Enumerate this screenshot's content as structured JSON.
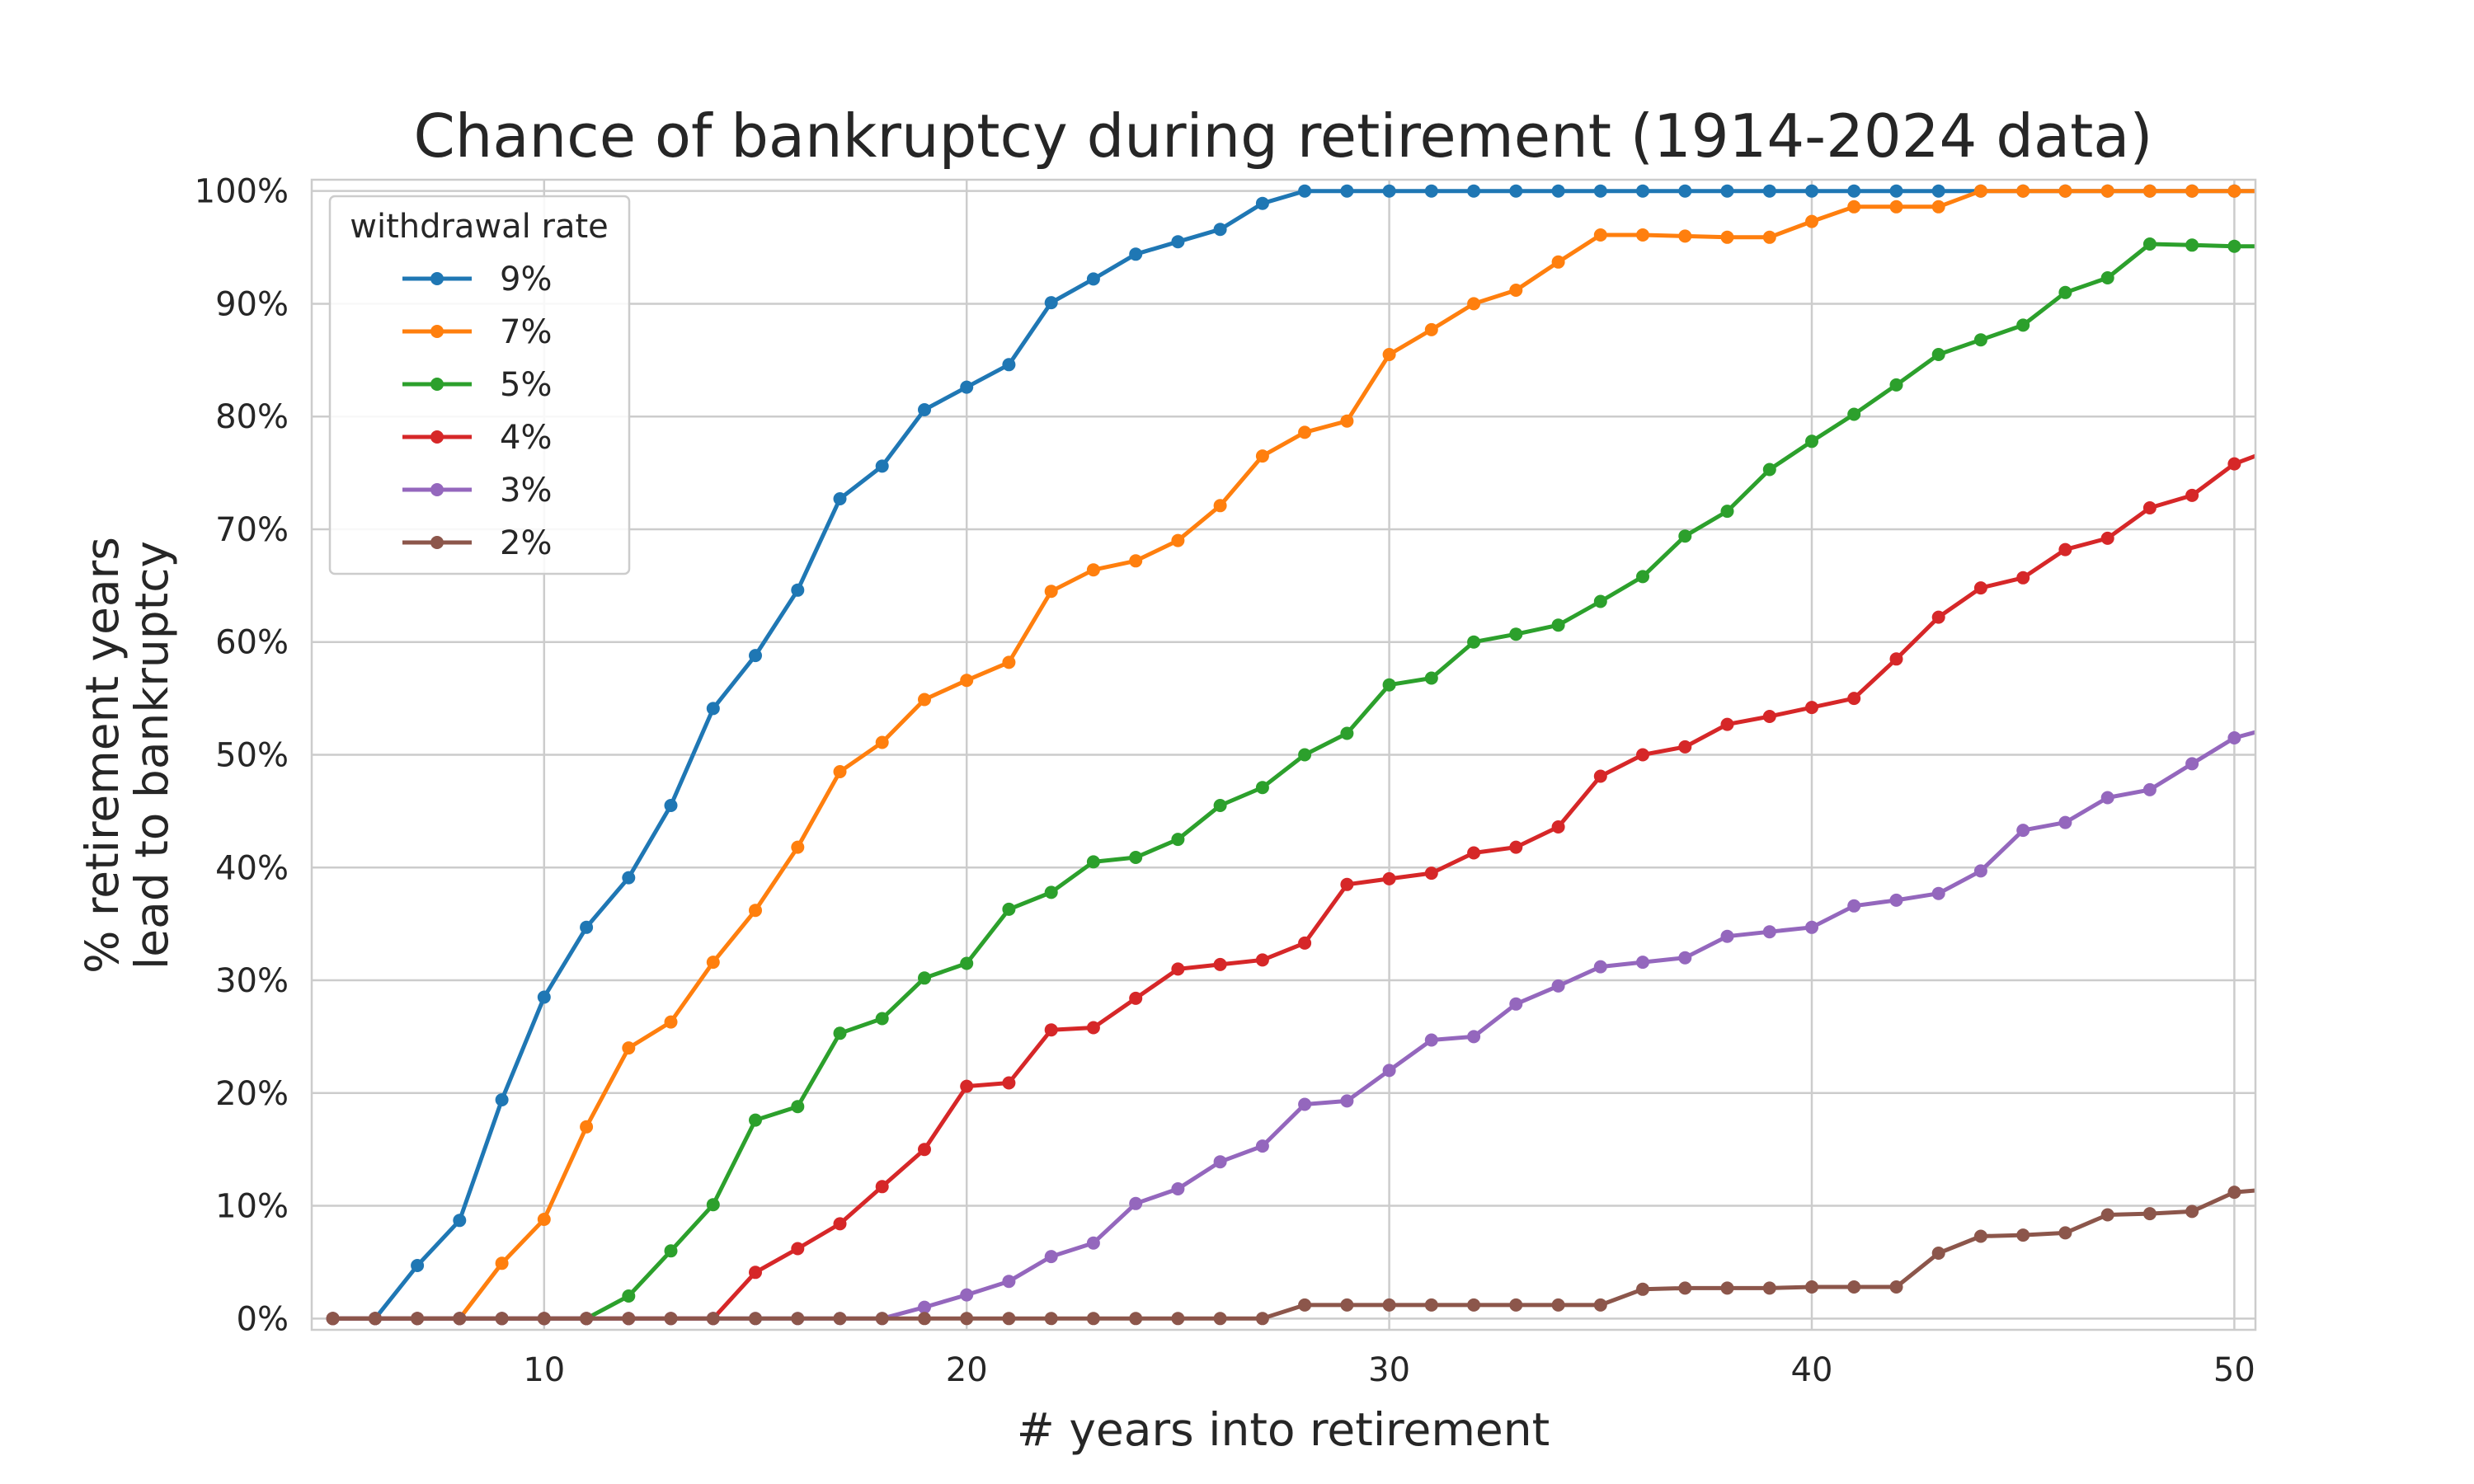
{
  "chart_data": {
    "type": "line",
    "title": "Chance of bankruptcy during retirement (1914-2024 data)",
    "xlabel": "# years into retirement",
    "ylabel_lines": [
      "% retirement years",
      "lead to bankruptcy"
    ],
    "xlim": [
      4.5,
      50.5
    ],
    "ylim": [
      -0.01,
      1.01
    ],
    "xticks": [
      10,
      20,
      30,
      40,
      50
    ],
    "yticks": [
      0,
      0.1,
      0.2,
      0.3,
      0.4,
      0.5,
      0.6,
      0.7,
      0.8,
      0.9,
      1.0
    ],
    "ytick_labels": [
      "0%",
      "10%",
      "20%",
      "30%",
      "40%",
      "50%",
      "60%",
      "70%",
      "80%",
      "90%",
      "100%"
    ],
    "grid": true,
    "legend": {
      "title": "withdrawal rate",
      "placement": "top-left"
    },
    "x": [
      5,
      6,
      7,
      8,
      9,
      10,
      11,
      12,
      13,
      14,
      15,
      16,
      17,
      18,
      19,
      20,
      21,
      22,
      23,
      24,
      25,
      26,
      27,
      28,
      29,
      30,
      31,
      32,
      33,
      34,
      35,
      36,
      37,
      38,
      39,
      40,
      41,
      42,
      43,
      44,
      45,
      46,
      47,
      48,
      49,
      50,
      51
    ],
    "series": [
      {
        "name": "9%",
        "color": "#1f77b4",
        "values": [
          0,
          0,
          0.047,
          0.087,
          0.194,
          0.285,
          0.347,
          0.391,
          0.455,
          0.541,
          0.588,
          0.646,
          0.727,
          0.756,
          0.806,
          0.826,
          0.846,
          0.901,
          0.922,
          0.944,
          0.955,
          0.966,
          0.989,
          1.0,
          1.0,
          1.0,
          1.0,
          1.0,
          1.0,
          1.0,
          1.0,
          1.0,
          1.0,
          1.0,
          1.0,
          1.0,
          1.0,
          1.0,
          1.0,
          1.0,
          1.0,
          1.0,
          1.0,
          1.0,
          1.0,
          1.0,
          1.0
        ]
      },
      {
        "name": "7%",
        "color": "#ff7f0e",
        "values": [
          0,
          0,
          0,
          0,
          0.049,
          0.088,
          0.17,
          0.24,
          0.263,
          0.316,
          0.362,
          0.418,
          0.485,
          0.511,
          0.549,
          0.566,
          0.582,
          0.645,
          0.664,
          0.672,
          0.69,
          0.721,
          0.765,
          0.786,
          0.796,
          0.855,
          0.877,
          0.9,
          0.912,
          0.937,
          0.961,
          0.961,
          0.96,
          0.959,
          0.959,
          0.973,
          0.986,
          0.986,
          0.986,
          1.0,
          1.0,
          1.0,
          1.0,
          1.0,
          1.0,
          1.0,
          1.0
        ]
      },
      {
        "name": "5%",
        "color": "#2ca02c",
        "values": [
          0,
          0,
          0,
          0,
          0,
          0,
          0,
          0.02,
          0.06,
          0.101,
          0.176,
          0.188,
          0.253,
          0.266,
          0.302,
          0.315,
          0.363,
          0.378,
          0.405,
          0.409,
          0.425,
          0.455,
          0.471,
          0.5,
          0.519,
          0.562,
          0.568,
          0.6,
          0.607,
          0.615,
          0.636,
          0.658,
          0.694,
          0.716,
          0.753,
          0.778,
          0.802,
          0.828,
          0.855,
          0.868,
          0.881,
          0.91,
          0.923,
          0.953,
          0.952,
          0.951,
          0.951
        ]
      },
      {
        "name": "4%",
        "color": "#d62728",
        "values": [
          0,
          0,
          0,
          0,
          0,
          0,
          0,
          0,
          0,
          0,
          0.041,
          0.062,
          0.084,
          0.117,
          0.15,
          0.206,
          0.209,
          0.256,
          0.258,
          0.284,
          0.31,
          0.314,
          0.318,
          0.333,
          0.385,
          0.39,
          0.395,
          0.413,
          0.418,
          0.436,
          0.481,
          0.5,
          0.507,
          0.527,
          0.534,
          0.542,
          0.55,
          0.585,
          0.622,
          0.648,
          0.657,
          0.682,
          0.692,
          0.719,
          0.73,
          0.758,
          0.772
        ]
      },
      {
        "name": "3%",
        "color": "#9467bd",
        "values": [
          0,
          0,
          0,
          0,
          0,
          0,
          0,
          0,
          0,
          0,
          0,
          0,
          0,
          0,
          0.01,
          0.021,
          0.033,
          0.055,
          0.067,
          0.102,
          0.115,
          0.139,
          0.153,
          0.19,
          0.193,
          0.22,
          0.247,
          0.25,
          0.279,
          0.295,
          0.312,
          0.316,
          0.32,
          0.339,
          0.343,
          0.347,
          0.366,
          0.371,
          0.377,
          0.397,
          0.433,
          0.44,
          0.462,
          0.469,
          0.492,
          0.515,
          0.525
        ]
      },
      {
        "name": "2%",
        "color": "#8c564b",
        "values": [
          0,
          0,
          0,
          0,
          0,
          0,
          0,
          0,
          0,
          0,
          0,
          0,
          0,
          0,
          0,
          0,
          0,
          0,
          0,
          0,
          0,
          0,
          0,
          0.012,
          0.012,
          0.012,
          0.012,
          0.012,
          0.012,
          0.012,
          0.012,
          0.026,
          0.027,
          0.027,
          0.027,
          0.028,
          0.028,
          0.028,
          0.058,
          0.073,
          0.074,
          0.076,
          0.092,
          0.093,
          0.095,
          0.112,
          0.115
        ]
      }
    ]
  }
}
